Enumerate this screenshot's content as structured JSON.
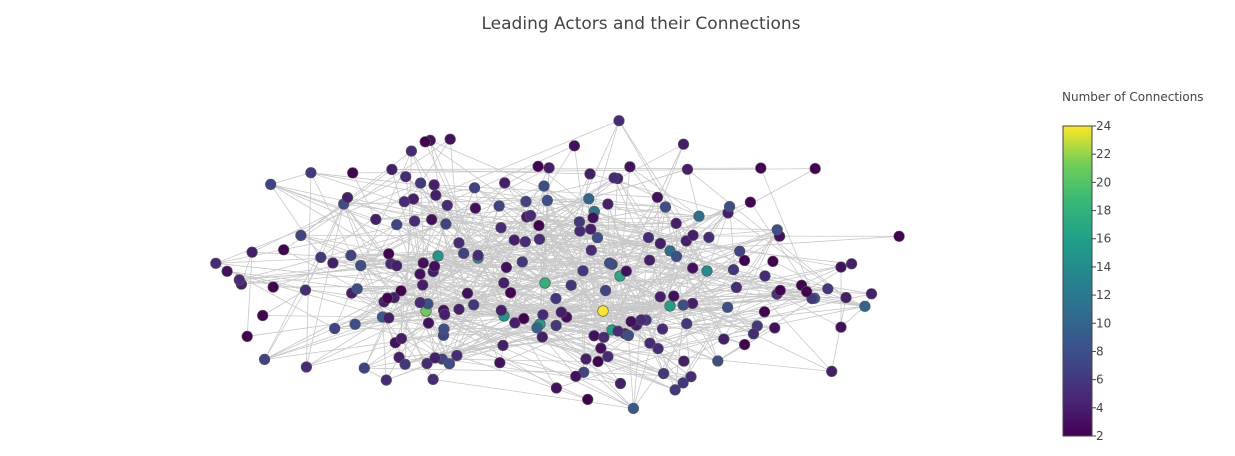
{
  "chart_data": {
    "type": "network",
    "title": "Leading Actors and their Connections",
    "colorbar": {
      "title": "Number of Connections",
      "range": [
        2,
        24
      ],
      "ticks": [
        2,
        4,
        6,
        8,
        10,
        12,
        14,
        16,
        18,
        20,
        22,
        24
      ],
      "colorscale": "Viridis"
    }
  }
}
